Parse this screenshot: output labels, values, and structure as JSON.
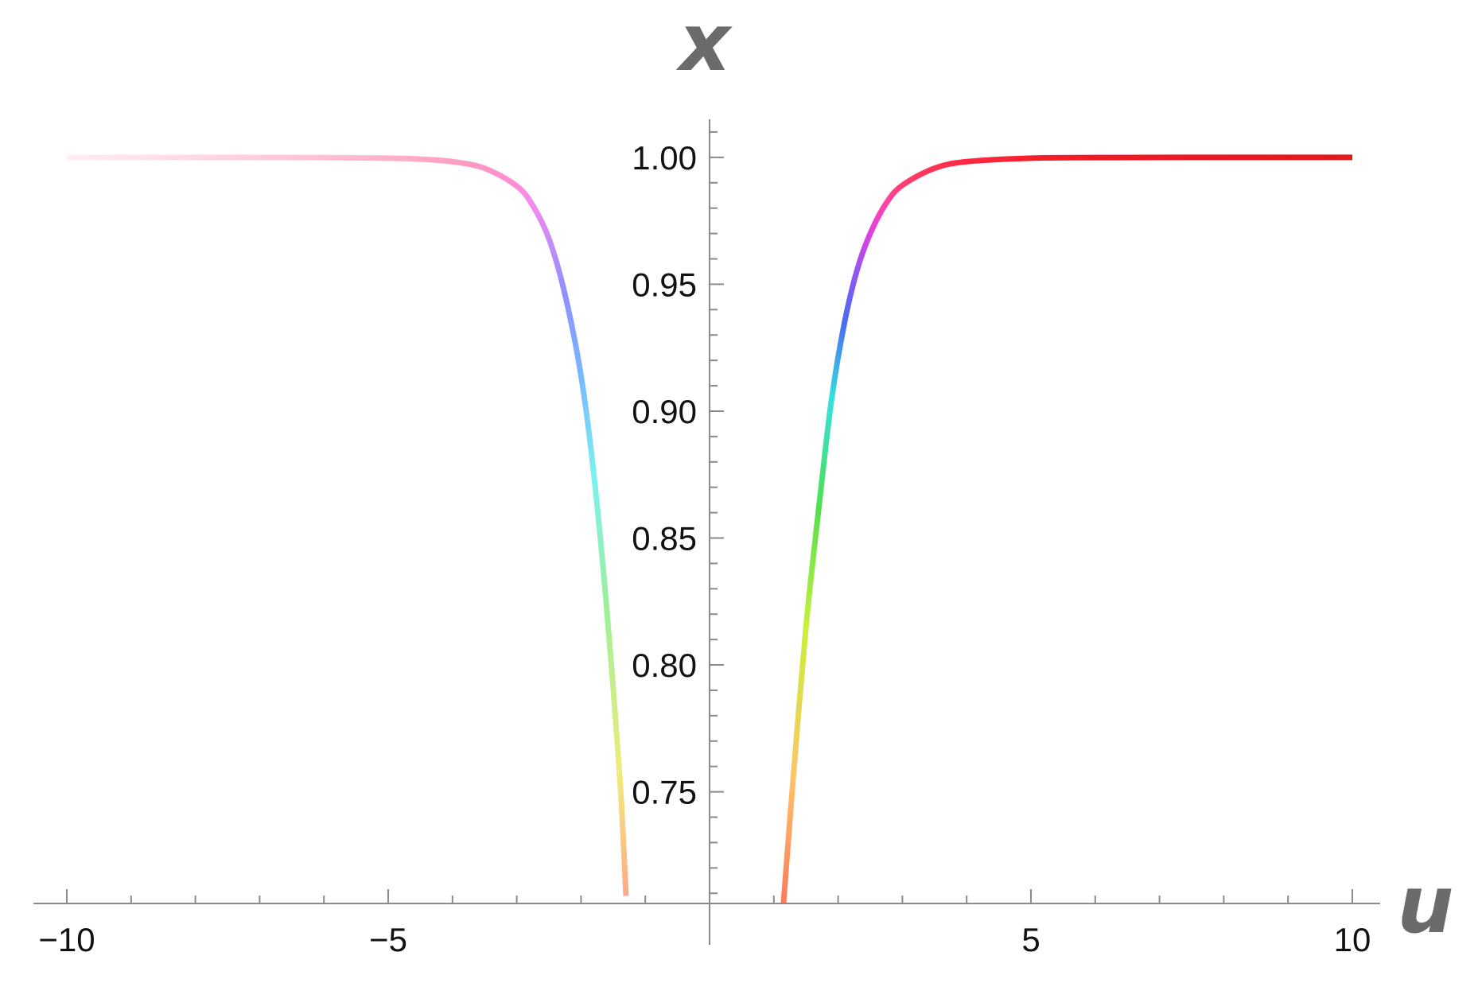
{
  "chart_data": {
    "type": "line",
    "xlabel": "u",
    "ylabel": "x",
    "xlim": [
      -10,
      10
    ],
    "ylim": [
      0.706,
      1.015
    ],
    "x_ticks": [
      {
        "value": -10,
        "label": "−10"
      },
      {
        "value": -5,
        "label": "−5"
      },
      {
        "value": 5,
        "label": "5"
      },
      {
        "value": 10,
        "label": "10"
      }
    ],
    "y_ticks": [
      {
        "value": 1.0,
        "label": "1.00"
      },
      {
        "value": 0.95,
        "label": "0.95"
      },
      {
        "value": 0.9,
        "label": "0.90"
      },
      {
        "value": 0.85,
        "label": "0.85"
      },
      {
        "value": 0.8,
        "label": "0.80"
      },
      {
        "value": 0.75,
        "label": "0.75"
      }
    ],
    "grid": false,
    "series": [
      {
        "part": "left",
        "x": [
          -10,
          -8,
          -6,
          -5,
          -4.5,
          -4,
          -3.5,
          -3,
          -2.75,
          -2.5,
          -2.25,
          -2.0,
          -1.8,
          -1.6,
          -1.4,
          -1.3
        ],
        "y": [
          1.0,
          1.0,
          0.9999,
          0.9997,
          0.9993,
          0.9983,
          0.9957,
          0.9887,
          0.981,
          0.968,
          0.946,
          0.914,
          0.875,
          0.822,
          0.757,
          0.709
        ],
        "colors": [
          "#ffeef2",
          "#ffd9e3",
          "#ffc0d6",
          "#ffb0cc",
          "#ffa8c6",
          "#ff9ec2",
          "#ff95c6",
          "#ff8ed8",
          "#f489f0",
          "#c98cf4",
          "#8e90ff",
          "#79b8ff",
          "#7df0f0",
          "#9df09a",
          "#f0ec7a",
          "#ffa98a"
        ]
      },
      {
        "part": "right",
        "x": [
          1.15,
          1.3,
          1.5,
          1.7,
          1.9,
          2.1,
          2.3,
          2.5,
          2.75,
          3.0,
          3.5,
          4.0,
          5.0,
          6.0,
          8.0,
          10.0
        ],
        "y": [
          0.706,
          0.755,
          0.815,
          0.862,
          0.905,
          0.935,
          0.956,
          0.97,
          0.982,
          0.989,
          0.9957,
          0.9983,
          0.9997,
          0.9999,
          1.0,
          1.0
        ],
        "colors": [
          "#ff7a5a",
          "#ffc36a",
          "#c9f03a",
          "#4fe04f",
          "#33e0e0",
          "#4a6cf0",
          "#9a55f0",
          "#e040e0",
          "#ff44a8",
          "#ff3f6f",
          "#ff3355",
          "#ff2a40",
          "#f5202c",
          "#ee1a24",
          "#e81820",
          "#e21a1a"
        ]
      }
    ]
  }
}
